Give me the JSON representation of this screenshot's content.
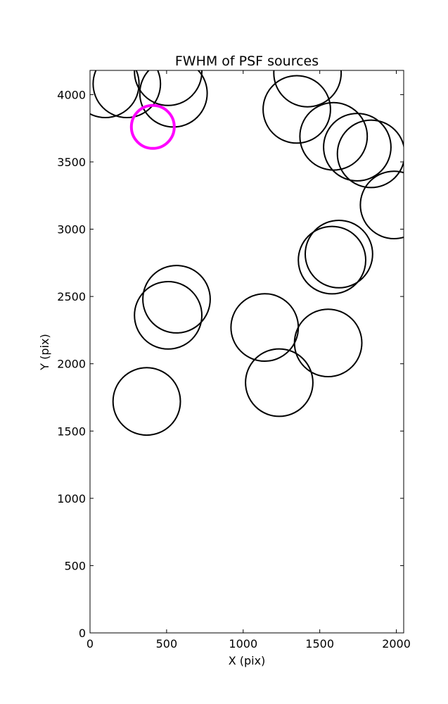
{
  "chart_data": {
    "type": "scatter",
    "title": "FWHM of PSF sources",
    "xlabel": "X (pix)",
    "ylabel": "Y (pix)",
    "xlim": [
      0,
      2048
    ],
    "ylim": [
      0,
      4180
    ],
    "xticks": [
      0,
      500,
      1000,
      1500,
      2000
    ],
    "yticks": [
      0,
      500,
      1000,
      1500,
      2000,
      2500,
      3000,
      3500,
      4000
    ],
    "grid": false,
    "legend": "none",
    "colors": {
      "normal": "#000000",
      "highlight": "#ff00ff"
    },
    "series": [
      {
        "marker": "circle",
        "points": [
          {
            "x": 100,
            "y": 4080,
            "radius": 220
          },
          {
            "x": 240,
            "y": 4080,
            "radius": 220
          },
          {
            "x": 510,
            "y": 4170,
            "radius": 220
          },
          {
            "x": 545,
            "y": 4010,
            "radius": 220
          },
          {
            "x": 410,
            "y": 3760,
            "radius": 140,
            "highlight": true
          },
          {
            "x": 1420,
            "y": 4160,
            "radius": 220
          },
          {
            "x": 1350,
            "y": 3890,
            "radius": 220
          },
          {
            "x": 1590,
            "y": 3690,
            "radius": 220
          },
          {
            "x": 1745,
            "y": 3610,
            "radius": 220
          },
          {
            "x": 1835,
            "y": 3560,
            "radius": 220
          },
          {
            "x": 1985,
            "y": 3180,
            "radius": 220
          },
          {
            "x": 1625,
            "y": 2815,
            "radius": 220
          },
          {
            "x": 1580,
            "y": 2770,
            "radius": 220
          },
          {
            "x": 565,
            "y": 2480,
            "radius": 220
          },
          {
            "x": 510,
            "y": 2360,
            "radius": 220
          },
          {
            "x": 1140,
            "y": 2270,
            "radius": 220
          },
          {
            "x": 1555,
            "y": 2155,
            "radius": 220
          },
          {
            "x": 1235,
            "y": 1860,
            "radius": 220
          },
          {
            "x": 370,
            "y": 1720,
            "radius": 220
          }
        ]
      }
    ]
  }
}
